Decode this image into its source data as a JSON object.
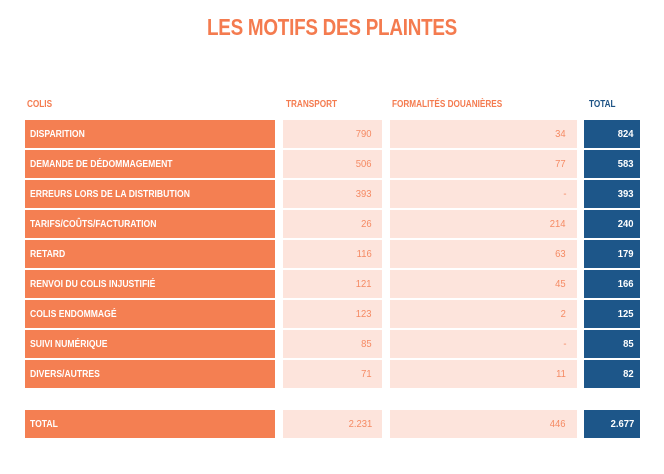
{
  "title": "LES MOTIFS DES PLAINTES",
  "headers": {
    "colis": "COLIS",
    "transport": "TRANSPORT",
    "formalites": "FORMALITÉS DOUANIÈRES",
    "total": "TOTAL"
  },
  "rows": [
    {
      "label": "DISPARITION",
      "transport": "790",
      "formalites": "34",
      "total": "824"
    },
    {
      "label": "DEMANDE DE DÉDOMMAGEMENT",
      "transport": "506",
      "formalites": "77",
      "total": "583"
    },
    {
      "label": "ERREURS LORS DE LA DISTRIBUTION",
      "transport": "393",
      "formalites": "-",
      "total": "393"
    },
    {
      "label": "TARIFS/COÛTS/FACTURATION",
      "transport": "26",
      "formalites": "214",
      "total": "240"
    },
    {
      "label": "RETARD",
      "transport": "116",
      "formalites": "63",
      "total": "179"
    },
    {
      "label": "RENVOI DU COLIS INJUSTIFIÉ",
      "transport": "121",
      "formalites": "45",
      "total": "166"
    },
    {
      "label": "COLIS ENDOMMAGÉ",
      "transport": "123",
      "formalites": "2",
      "total": "125"
    },
    {
      "label": "SUIVI NUMÉRIQUE",
      "transport": "85",
      "formalites": "-",
      "total": "85"
    },
    {
      "label": "DIVERS/AUTRES",
      "transport": "71",
      "formalites": "11",
      "total": "82"
    }
  ],
  "totals": {
    "label": "TOTAL",
    "transport": "2.231",
    "formalites": "446",
    "total": "2.677"
  },
  "colors": {
    "accent_orange": "#f47f52",
    "light_orange": "#fde4dc",
    "navy": "#1d5689"
  }
}
